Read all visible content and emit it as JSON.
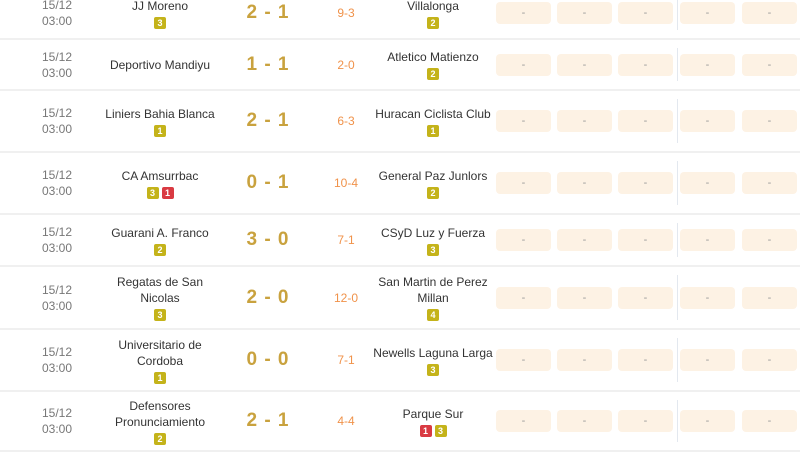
{
  "matches": [
    {
      "date": "15/12",
      "time": "03:00",
      "home": "JJ Moreno",
      "home_cards": [
        {
          "type": "yellow",
          "count": "3"
        }
      ],
      "score": "2 - 1",
      "ht": "9-3",
      "away": "Villalonga",
      "away_cards": [
        {
          "type": "yellow",
          "count": "2"
        }
      ],
      "odds": [
        "-",
        "-",
        "-",
        "-",
        "-"
      ]
    },
    {
      "date": "15/12",
      "time": "03:00",
      "home": "Deportivo Mandiyu",
      "home_cards": [],
      "score": "1 - 1",
      "ht": "2-0",
      "away": "Atletico Matienzo",
      "away_cards": [
        {
          "type": "yellow",
          "count": "2"
        }
      ],
      "odds": [
        "-",
        "-",
        "-",
        "-",
        "-"
      ]
    },
    {
      "date": "15/12",
      "time": "03:00",
      "home": "Liniers Bahia Blanca",
      "home_cards": [
        {
          "type": "yellow",
          "count": "1"
        }
      ],
      "score": "2 - 1",
      "ht": "6-3",
      "away": "Huracan Ciclista Club",
      "away_cards": [
        {
          "type": "yellow",
          "count": "1"
        }
      ],
      "odds": [
        "-",
        "-",
        "-",
        "-",
        "-"
      ]
    },
    {
      "date": "15/12",
      "time": "03:00",
      "home": "CA Amsurrbac",
      "home_cards": [
        {
          "type": "yellow",
          "count": "3"
        },
        {
          "type": "red",
          "count": "1"
        }
      ],
      "score": "0 - 1",
      "ht": "10-4",
      "away": "General Paz Junlors",
      "away_cards": [
        {
          "type": "yellow",
          "count": "2"
        }
      ],
      "odds": [
        "-",
        "-",
        "-",
        "-",
        "-"
      ]
    },
    {
      "date": "15/12",
      "time": "03:00",
      "home": "Guarani A. Franco",
      "home_cards": [
        {
          "type": "yellow",
          "count": "2"
        }
      ],
      "score": "3 - 0",
      "ht": "7-1",
      "away": "CSyD Luz y Fuerza",
      "away_cards": [
        {
          "type": "yellow",
          "count": "3"
        }
      ],
      "odds": [
        "-",
        "-",
        "-",
        "-",
        "-"
      ]
    },
    {
      "date": "15/12",
      "time": "03:00",
      "home": "Regatas de San Nicolas",
      "home_cards": [
        {
          "type": "yellow",
          "count": "3"
        }
      ],
      "score": "2 - 0",
      "ht": "12-0",
      "away": "San Martin de Perez Millan",
      "away_cards": [
        {
          "type": "yellow",
          "count": "4"
        }
      ],
      "odds": [
        "-",
        "-",
        "-",
        "-",
        "-"
      ]
    },
    {
      "date": "15/12",
      "time": "03:00",
      "home": "Universitario de Cordoba",
      "home_cards": [
        {
          "type": "yellow",
          "count": "1"
        }
      ],
      "score": "0 - 0",
      "ht": "7-1",
      "away": "Newells Laguna Larga",
      "away_cards": [
        {
          "type": "yellow",
          "count": "3"
        }
      ],
      "odds": [
        "-",
        "-",
        "-",
        "-",
        "-"
      ]
    },
    {
      "date": "15/12",
      "time": "03:00",
      "home": "Defensores Pronunciamiento",
      "home_cards": [
        {
          "type": "yellow",
          "count": "2"
        }
      ],
      "score": "2 - 1",
      "ht": "4-4",
      "away": "Parque Sur",
      "away_cards": [
        {
          "type": "red",
          "count": "1"
        },
        {
          "type": "yellow",
          "count": "3"
        }
      ],
      "odds": [
        "-",
        "-",
        "-",
        "-",
        "-"
      ]
    }
  ],
  "colors": {
    "score": "#c9a23e",
    "half_time": "#f0924a",
    "yellow_card": "#c4b31a",
    "red_card": "#d93a42",
    "odds_cell": "#fdf2e4"
  }
}
